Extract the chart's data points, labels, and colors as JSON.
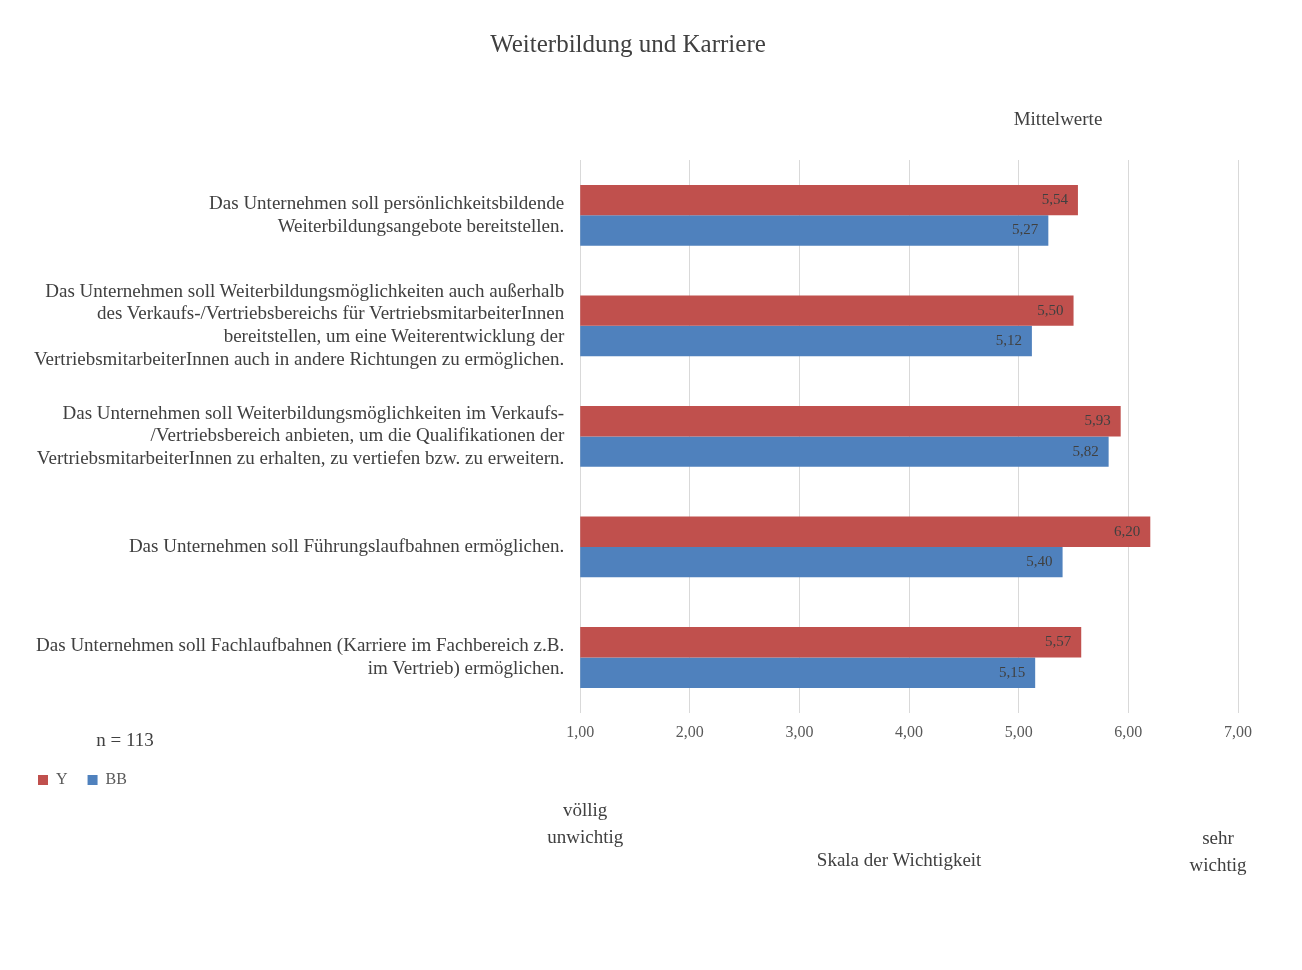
{
  "chart_data": {
    "type": "bar",
    "orientation": "horizontal",
    "title": "Weiterbildung und Karriere",
    "categories": [
      "Das Unternehmen soll persönlichkeitsbildende\nWeiterbildungsangebote bereitstellen.",
      "Das Unternehmen soll Weiterbildungsmöglichkeiten auch außerhalb\ndes Verkaufs-/Vertriebsbereichs für VertriebsmitarbeiterInnen\nbereitstellen, um eine Weiterentwicklung der\nVertriebsmitarbeiterInnen auch in andere Richtungen zu ermöglichen.",
      "Das Unternehmen soll Weiterbildungsmöglichkeiten im Verkaufs-\n/Vertriebsbereich anbieten, um die Qualifikationen der\nVertriebsmitarbeiterInnen zu erhalten, zu vertiefen bzw. zu erweitern.",
      "Das Unternehmen soll Führungslaufbahnen ermöglichen.",
      "Das Unternehmen soll Fachlaufbahnen (Karriere im Fachbereich z.B.\nim Vertrieb) ermöglichen."
    ],
    "series": [
      {
        "name": "Y",
        "color": "#c0504d",
        "values": [
          5.54,
          5.5,
          5.93,
          6.2,
          5.57
        ],
        "value_labels": [
          "5,54",
          "5,50",
          "5,93",
          "6,20",
          "5,57"
        ]
      },
      {
        "name": "BB",
        "color": "#4f81bd",
        "values": [
          5.27,
          5.12,
          5.82,
          5.4,
          5.15
        ],
        "value_labels": [
          "5,27",
          "5,12",
          "5,82",
          "5,40",
          "5,15"
        ]
      }
    ],
    "xlim": [
      1,
      7
    ],
    "xticks": [
      {
        "value": 1,
        "label": "1,00"
      },
      {
        "value": 2,
        "label": "2,00"
      },
      {
        "value": 3,
        "label": "3,00"
      },
      {
        "value": 4,
        "label": "4,00"
      },
      {
        "value": 5,
        "label": "5,00"
      },
      {
        "value": 6,
        "label": "6,00"
      },
      {
        "value": 7,
        "label": "7,00"
      }
    ],
    "grid": "x",
    "legend": "bottom left",
    "annotations": [
      "Mittelwerte",
      "n = 113",
      "völlig\nunwichtig",
      "sehr\nwichtig",
      "Skala der Wichtigkeit"
    ]
  }
}
